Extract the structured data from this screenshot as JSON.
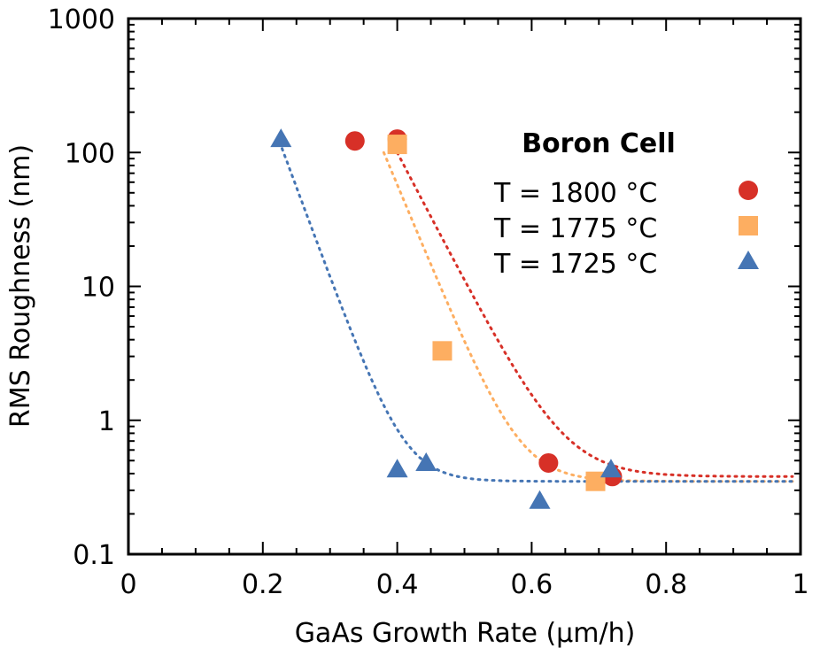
{
  "chart_data": {
    "type": "scatter",
    "title": "",
    "xlabel": "GaAs Growth Rate (µm/h)",
    "ylabel": "RMS Roughness (nm)",
    "xlim": [
      0,
      1
    ],
    "ylim": [
      0.1,
      1000
    ],
    "yscale": "log",
    "grid": false,
    "x_ticks": [
      0,
      0.2,
      0.4,
      0.6,
      0.8,
      1
    ],
    "x_tick_labels": [
      "0",
      "0.2",
      "0.4",
      "0.6",
      "0.8",
      "1"
    ],
    "y_ticks": [
      0.1,
      1,
      10,
      100,
      1000
    ],
    "y_tick_labels": [
      "0.1",
      "1",
      "10",
      "100",
      "1000"
    ],
    "legend": {
      "title": "Boron Cell",
      "placement": "top-right"
    },
    "series": [
      {
        "name": "T = 1800 °C",
        "marker": "circle",
        "color": "#d73027",
        "points": [
          [
            0.337,
            122
          ],
          [
            0.4,
            126
          ],
          [
            0.625,
            0.48
          ],
          [
            0.72,
            0.38
          ]
        ],
        "fit": {
          "style": "dotted",
          "x_start": 0.4,
          "y_start": 100,
          "plateau": 0.38,
          "decay": 0.045
        }
      },
      {
        "name": "T = 1775 °C",
        "marker": "square",
        "color": "#fdae61",
        "points": [
          [
            0.4,
            115
          ],
          [
            0.467,
            3.3
          ],
          [
            0.695,
            0.35
          ]
        ],
        "fit": {
          "style": "dotted",
          "x_start": 0.38,
          "y_start": 100,
          "plateau": 0.35,
          "decay": 0.036
        }
      },
      {
        "name": "T = 1725 °C",
        "marker": "triangle",
        "color": "#4575b4",
        "points": [
          [
            0.227,
            126
          ],
          [
            0.4,
            0.43
          ],
          [
            0.443,
            0.48
          ],
          [
            0.612,
            0.25
          ],
          [
            0.718,
            0.43
          ]
        ],
        "fit": {
          "style": "dotted",
          "x_start": 0.225,
          "y_start": 120,
          "plateau": 0.35,
          "decay": 0.032
        }
      }
    ]
  }
}
